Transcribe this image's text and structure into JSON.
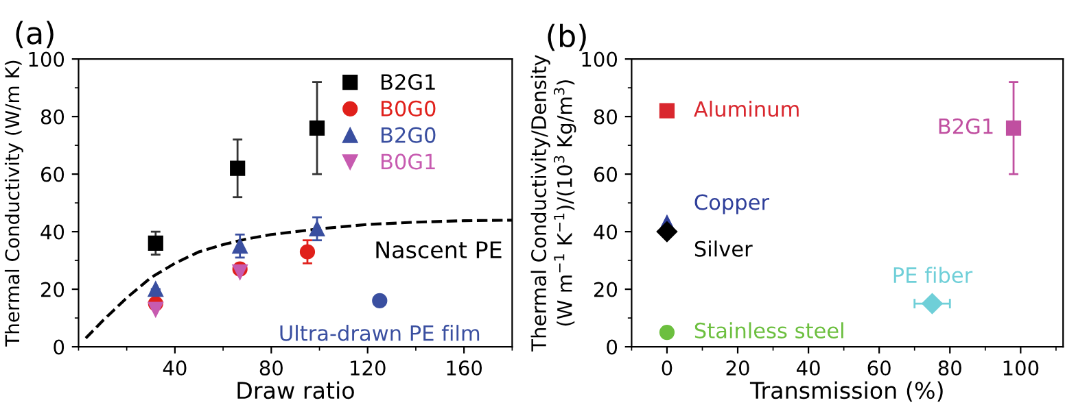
{
  "chart_data": [
    {
      "type": "scatter",
      "xlabel": "Draw ratio",
      "ylabel": "Thermal Conductivity (W/m K)",
      "xlim": [
        0,
        180
      ],
      "xticks": [
        40,
        80,
        120,
        160
      ],
      "ylim": [
        0,
        100
      ],
      "yticks": [
        0,
        20,
        40,
        60,
        80,
        100
      ],
      "legend": "top right",
      "grid": false,
      "annotations": [
        "(a)",
        "Nascent PE",
        {
          "text": "Ultra-drawn PE film",
          "x": 125,
          "y": 16
        }
      ],
      "series": [
        {
          "name": "B2G1",
          "color": "#000000",
          "marker": "square",
          "x": [
            32,
            66,
            99
          ],
          "values": [
            36,
            62,
            76
          ],
          "errors": [
            [
              32,
              40
            ],
            [
              52,
              72
            ],
            [
              60,
              92
            ]
          ]
        },
        {
          "name": "B0G0",
          "color": "#e0201b",
          "marker": "circle",
          "x": [
            32,
            67,
            95
          ],
          "values": [
            15,
            27,
            33
          ],
          "errors": [
            null,
            null,
            [
              29,
              37
            ]
          ]
        },
        {
          "name": "B2G0",
          "color": "#3a4fa0",
          "marker": "triangle",
          "x": [
            32,
            67,
            99
          ],
          "values": [
            20,
            35,
            41
          ],
          "errors": [
            null,
            [
              31,
              39
            ],
            [
              37,
              45
            ]
          ]
        },
        {
          "name": "B0G1",
          "color": "#c75bb0",
          "marker": "triangle_down",
          "x": [
            32,
            67
          ],
          "values": [
            13,
            26
          ]
        },
        {
          "color": "#3a4fa0",
          "marker": "circle",
          "x": [
            125
          ],
          "values": [
            16
          ]
        },
        {
          "type": "line",
          "color": "#000000",
          "line_style": "dashed",
          "marker": "none",
          "x": [
            3,
            10,
            20,
            30,
            40,
            50,
            60,
            70,
            80,
            100,
            120,
            140,
            160,
            180
          ],
          "values": [
            3,
            9,
            17,
            24,
            29,
            33,
            35.5,
            37.5,
            39,
            41,
            42.5,
            43.3,
            43.8,
            44
          ]
        }
      ]
    },
    {
      "type": "scatter",
      "xlabel": "Transmission (%)",
      "ylabel": "Thermal Conductivity/Density\n(W m$^{−1}$ K$^{−1}$)/(10$^{3}$ Kg/m$^{3}$)",
      "xlim": [
        -10,
        112
      ],
      "xticks": [
        0,
        20,
        40,
        60,
        80,
        100
      ],
      "ylim": [
        0,
        100
      ],
      "yticks": [
        0,
        20,
        40,
        60,
        80,
        100
      ],
      "legend": false,
      "grid": false,
      "annotations": [
        "(b)",
        {
          "text": "Aluminum",
          "x": 0,
          "y": 82
        },
        {
          "text": "Copper",
          "x": 0,
          "y": 43
        },
        {
          "text": "Silver",
          "x": 0,
          "y": 40
        },
        {
          "text": "Stainless steel",
          "x": 0,
          "y": 5
        },
        {
          "text": "PE fiber",
          "x": 75,
          "y": 15
        },
        {
          "text": "B2G1",
          "x": 98,
          "y": 76
        }
      ],
      "series": [
        {
          "color": "#d9272e",
          "marker": "square",
          "x": [
            0
          ],
          "values": [
            82
          ]
        },
        {
          "color": "#2f3f9a",
          "marker": "triangle",
          "x": [
            0
          ],
          "values": [
            43
          ]
        },
        {
          "color": "#000000",
          "marker": "diamond",
          "x": [
            0
          ],
          "values": [
            40
          ]
        },
        {
          "color": "#6cbf3f",
          "marker": "circle",
          "x": [
            0
          ],
          "values": [
            5
          ]
        },
        {
          "color": "#6fcfd8",
          "marker": "diamond",
          "x": [
            75
          ],
          "values": [
            15
          ],
          "xerrors": [
            [
              70,
              80
            ]
          ]
        },
        {
          "color": "#c04fa0",
          "marker": "square",
          "x": [
            98
          ],
          "values": [
            76
          ],
          "errors": [
            [
              60,
              92
            ]
          ]
        }
      ]
    }
  ]
}
